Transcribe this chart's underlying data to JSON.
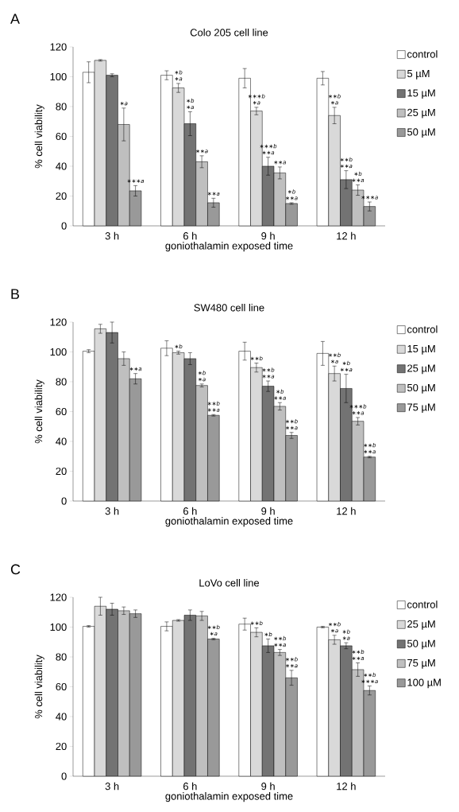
{
  "chart_data": [
    {
      "type": "bar",
      "title": "Colo 205 cell line",
      "xlabel": "goniothalamin exposed time",
      "ylabel": "% cell viability",
      "categories": [
        "3 h",
        "6 h",
        "9 h",
        "12 h"
      ],
      "ylim": [
        0,
        120
      ],
      "yticks": [
        0,
        20,
        40,
        60,
        80,
        100,
        120
      ],
      "legend": "right",
      "series": [
        {
          "name": "control",
          "color": "#ffffff",
          "values": [
            103,
            101,
            99,
            99
          ],
          "errors": [
            7,
            3,
            6.5,
            4.5
          ]
        },
        {
          "name": "5 µM",
          "color": "#d9d9d9",
          "values": [
            111,
            92.5,
            77,
            74
          ],
          "errors": [
            0.5,
            3,
            2.5,
            5.5
          ]
        },
        {
          "name": "15 µM",
          "color": "#737373",
          "values": [
            101,
            68.5,
            40,
            31
          ],
          "errors": [
            1,
            8,
            6,
            6
          ]
        },
        {
          "name": "25 µM",
          "color": "#bfbfbf",
          "values": [
            68,
            43,
            35.5,
            24
          ],
          "errors": [
            11,
            4,
            4,
            3.5
          ]
        },
        {
          "name": "50 µM",
          "color": "#999999",
          "values": [
            23.5,
            15.5,
            15,
            13
          ],
          "errors": [
            3.5,
            3,
            0.5,
            3
          ]
        }
      ],
      "annotations": [
        "A",
        "∗*a*",
        "∗∗∗*a*",
        "∗*a*",
        "∗*b*",
        "∗*a*",
        "∗*b*",
        "∗∗*a*",
        "∗∗*a*",
        "∗*a*",
        "∗∗∗*b*",
        "∗∗*a*",
        "∗∗∗*b*",
        "∗∗*a*",
        "∗∗*a*",
        "∗*b*",
        "∗*a*",
        "∗∗*b*",
        "∗∗*a*",
        "∗∗*b*",
        "∗∗*a*",
        "∗*b*",
        "∗∗∗*a*"
      ]
    },
    {
      "type": "bar",
      "title": "SW480 cell line",
      "xlabel": "goniothalamin exposed time",
      "ylabel": "% cell viability",
      "categories": [
        "3 h",
        "6 h",
        "9 h",
        "12 h"
      ],
      "ylim": [
        0,
        120
      ],
      "yticks": [
        0,
        20,
        40,
        60,
        80,
        100,
        120
      ],
      "legend": "right",
      "series": [
        {
          "name": "control",
          "color": "#ffffff",
          "values": [
            100.5,
            102.5,
            100.5,
            99
          ],
          "errors": [
            1,
            5,
            6,
            8
          ]
        },
        {
          "name": "15 µM",
          "color": "#d9d9d9",
          "values": [
            115.5,
            99.5,
            89.5,
            85.5
          ],
          "errors": [
            3,
            1,
            3,
            5
          ]
        },
        {
          "name": "25 µM",
          "color": "#737373",
          "values": [
            113,
            95.5,
            77,
            75.5
          ],
          "errors": [
            7,
            4,
            3.5,
            9.5
          ]
        },
        {
          "name": "50 µM",
          "color": "#bfbfbf",
          "values": [
            95.5,
            77.5,
            63.5,
            53.5
          ],
          "errors": [
            4.5,
            1,
            2.5,
            2.5
          ]
        },
        {
          "name": "75 µM",
          "color": "#999999",
          "values": [
            82,
            57.5,
            44,
            29.5
          ],
          "errors": [
            3.5,
            0.5,
            2,
            0.5
          ]
        }
      ],
      "annotations": [
        "B",
        "∗∗*a*",
        "∗*b*",
        "∗*a*",
        "∗*b*",
        "∗∗*a*",
        "∗∗*b*",
        "∗∗*b*",
        "∗∗*a*",
        "∗∗*b*",
        "∗∗*a*",
        "∗*b*",
        "∗∗*a*",
        "∗∗*b*",
        "∗*a*",
        "∗∗*b*",
        "∗∗*a*",
        "∗*b*",
        "∗∗*a*",
        "∗∗∗*b*",
        "∗∗*a*",
        "∗∗*b*"
      ]
    },
    {
      "type": "bar",
      "title": "LoVo cell line",
      "xlabel": "goniothalamin exposed time",
      "ylabel": "% cell viability",
      "categories": [
        "3 h",
        "6 h",
        "9 h",
        "12 h"
      ],
      "ylim": [
        0,
        120
      ],
      "yticks": [
        0,
        20,
        40,
        60,
        80,
        100,
        120
      ],
      "legend": "right",
      "series": [
        {
          "name": "control",
          "color": "#ffffff",
          "values": [
            100.5,
            100.5,
            102,
            100
          ],
          "errors": [
            0.5,
            3,
            4,
            0.5
          ]
        },
        {
          "name": "25 µM",
          "color": "#d9d9d9",
          "values": [
            114,
            104.5,
            96.5,
            91.5
          ],
          "errors": [
            6,
            0.5,
            3,
            3
          ]
        },
        {
          "name": "50 µM",
          "color": "#737373",
          "values": [
            112,
            108,
            87.5,
            87.5
          ],
          "errors": [
            4,
            3.5,
            4.5,
            2
          ]
        },
        {
          "name": "75 µM",
          "color": "#bfbfbf",
          "values": [
            111,
            107.5,
            83,
            71.5
          ],
          "errors": [
            2.5,
            3,
            2,
            4.5
          ]
        },
        {
          "name": "100 µM",
          "color": "#999999",
          "values": [
            109,
            92,
            66,
            57.5
          ],
          "errors": [
            2.5,
            0.5,
            5,
            3
          ]
        }
      ],
      "annotations": [
        "C",
        "∗*a*",
        "∗∗*b*",
        "∗∗*b*",
        "∗*b*",
        "∗∗*a*",
        "∗∗*b*",
        "∗∗*a*",
        "∗∗*b*",
        "∗*a*",
        "∗∗*b*",
        "∗*a*",
        "∗*b*",
        "∗∗*a*",
        "∗∗*b*",
        "∗∗∗*a*",
        "∗∗*b*"
      ]
    }
  ]
}
